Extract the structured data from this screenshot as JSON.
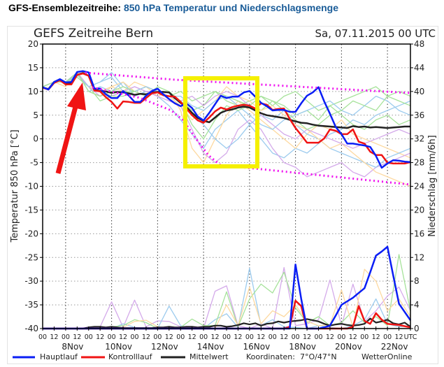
{
  "header": {
    "prefix": "GFS-Ensemblezeitreihe:",
    "title": "850 hPa Temperatur und Niederschlagsmenge"
  },
  "chart_data": {
    "type": "line",
    "title": "GEFS Zeitreihe Bern",
    "date": "Sa, 07.11.2015 00 UTC",
    "ylabel_left": "Temperatur 850 hPa [°C]",
    "ylabel_right": "Niederschlag [mm/6h]",
    "ylim_left": [
      -40,
      20
    ],
    "ylim_right": [
      0,
      48
    ],
    "left_ticks": [
      "20",
      "15",
      "10",
      "5",
      "0",
      "-5",
      "-10",
      "-15",
      "-20",
      "-25",
      "-30",
      "-35",
      "-40"
    ],
    "right_ticks": [
      "48",
      "44",
      "40",
      "36",
      "32",
      "28",
      "24",
      "20",
      "16",
      "12",
      "8",
      "4",
      "0"
    ],
    "x_tick_labels": [
      "00",
      "12",
      "00",
      "12",
      "00",
      "12",
      "00",
      "12",
      "00",
      "12",
      "00",
      "12",
      "00",
      "12",
      "00",
      "12",
      "00",
      "12",
      "00",
      "12",
      "00",
      "12",
      "00",
      "12",
      "00",
      "12",
      "00",
      "12",
      "00",
      "12",
      "00",
      "12",
      "UTC"
    ],
    "date_labels": [
      "8Nov",
      "10Nov",
      "12Nov",
      "14Nov",
      "16Nov",
      "18Nov",
      "20Nov",
      "22Nov"
    ],
    "grid": true,
    "colors": {
      "hauptlauf": "#0a1ef5",
      "kontrolllauf": "#f01414",
      "mittelwert": "#222222",
      "annotation_box": "#f5f000",
      "annotation_arrow": "#f01414",
      "envelope": "#f014f0"
    },
    "temperature": {
      "hauptlauf": [
        10.9,
        10.4,
        12,
        12.6,
        11.9,
        12,
        14.1,
        14.3,
        14,
        10.6,
        10.6,
        9.4,
        8.6,
        8.6,
        10.1,
        9.1,
        7.8,
        7.8,
        9.1,
        10.1,
        10.6,
        9.4,
        8.4,
        7.5,
        6.9,
        7.5,
        6.5,
        4.7,
        3.9,
        5.5,
        7.3,
        9.1,
        8.6,
        8.9,
        8.9,
        9.8,
        10.1,
        8.9,
        7.6,
        6.9,
        6,
        6.1,
        6.1,
        5.7,
        5.7,
        7.5,
        9.1,
        9.8,
        10.9,
        7.9,
        5.3,
        2.5,
        1,
        -1,
        -1,
        -1.2,
        -1.4,
        -1.7,
        -3.6,
        -6.1,
        -5.2,
        -4.5,
        -4.6,
        -4.8,
        -4.9
      ],
      "kontrolllauf": [
        10.8,
        10.4,
        11.8,
        12.4,
        11.5,
        11.5,
        13.5,
        13.8,
        13.3,
        10.2,
        10,
        8.8,
        7.8,
        6.4,
        7.9,
        7.8,
        7.6,
        7.6,
        8.6,
        9.6,
        9.8,
        9.2,
        9,
        8.9,
        7.8,
        6.4,
        5,
        3.9,
        3.4,
        4.5,
        5.8,
        6.6,
        6.2,
        6.7,
        7,
        7.2,
        7,
        6.4,
        7.5,
        7.2,
        6.1,
        6.3,
        6.4,
        4.2,
        2.3,
        0.8,
        -0.8,
        -0.8,
        -0.8,
        0.1,
        2,
        1.7,
        1,
        1,
        2,
        -0.6,
        -1,
        -2.7,
        -3.4,
        -3.4,
        -5,
        -5.2,
        -5.2,
        -5.2,
        -4.9
      ],
      "mittelwert": [
        10.8,
        10.5,
        12,
        12.5,
        11.6,
        11.7,
        13.5,
        13.9,
        13.3,
        10.4,
        10.1,
        10,
        9.7,
        9.9,
        9.8,
        9.6,
        9.3,
        9.5,
        9.4,
        9.8,
        9.9,
        9.9,
        9.8,
        8.6,
        7.6,
        6.7,
        5.5,
        4.4,
        3.8,
        3.5,
        4.5,
        5.5,
        6,
        6.2,
        6.6,
        6.8,
        6.6,
        6,
        5.4,
        5,
        4.8,
        4.6,
        4.4,
        4,
        3.7,
        3.4,
        3.3,
        3,
        2.8,
        2.7,
        2.6,
        2.5,
        2.4,
        2.3,
        2.7,
        2.5,
        2.6,
        2.4,
        2.5,
        2.4,
        2.3,
        2.4,
        2.5,
        2.6,
        2.6
      ],
      "members": [
        {
          "color": "#9ccbee",
          "values": [
            11,
            12,
            12,
            14,
            11,
            12,
            13,
            10,
            9,
            10,
            9,
            7,
            4,
            1,
            -2,
            2,
            4,
            6,
            3,
            0,
            -3,
            -4,
            -2,
            -3,
            -1,
            1,
            2,
            4,
            3,
            5,
            6,
            7,
            8
          ]
        },
        {
          "color": "#a6e29a",
          "values": [
            11,
            12,
            12,
            13.5,
            11,
            8,
            9,
            10,
            10,
            11,
            10,
            9,
            10,
            8,
            9,
            10,
            8,
            7,
            8,
            9,
            7,
            9,
            10,
            8,
            6,
            7,
            8,
            9,
            10,
            11,
            9,
            10,
            9
          ]
        },
        {
          "color": "#fdd9a0",
          "values": [
            11,
            12,
            11,
            14,
            10,
            9,
            11,
            10,
            12,
            11,
            9,
            10,
            6,
            -2,
            -5,
            0,
            5,
            8,
            6,
            4,
            2,
            0,
            -2,
            1,
            3,
            2,
            4,
            1,
            0,
            -1,
            -2,
            -3,
            -4
          ]
        },
        {
          "color": "#d4aaea",
          "values": [
            11,
            12,
            12,
            14,
            11,
            10,
            9,
            10,
            11,
            10,
            9,
            8,
            7,
            2,
            -3,
            -5,
            -3,
            2,
            4,
            2,
            -2,
            -5,
            -6,
            -8,
            -7,
            -6,
            -5,
            -7,
            -8,
            -6,
            -5,
            -4,
            -3
          ]
        },
        {
          "color": "#9ccbee",
          "values": [
            11,
            12,
            12,
            14,
            10,
            11,
            10,
            12,
            9,
            10,
            10,
            9,
            8,
            5,
            3,
            0,
            -2,
            0,
            3,
            5,
            4,
            6,
            3,
            1,
            0,
            -2,
            -3,
            -4,
            -5,
            -6,
            -4,
            -3,
            -2
          ]
        },
        {
          "color": "#a6e29a",
          "values": [
            11,
            12,
            12,
            13,
            11,
            10,
            9,
            9,
            10,
            11,
            10,
            9,
            8,
            6,
            7,
            10,
            9,
            8,
            7,
            6,
            8,
            7,
            5,
            6,
            4,
            7,
            5,
            3,
            2,
            4,
            5,
            3,
            4
          ]
        },
        {
          "color": "#fdd9a0",
          "values": [
            11,
            12,
            12,
            14,
            11,
            10,
            11,
            12,
            10,
            11,
            10,
            9,
            7,
            4,
            6,
            8,
            11,
            9,
            8,
            6,
            7,
            5,
            3,
            2,
            0,
            -2,
            -1,
            -3,
            -5,
            -7,
            -8,
            -9,
            -10
          ]
        },
        {
          "color": "#d4aaea",
          "values": [
            11,
            12,
            12,
            14,
            11,
            9,
            10,
            10,
            11,
            10,
            10,
            9,
            8,
            9,
            7,
            9,
            10,
            9,
            7,
            5,
            3,
            1,
            0,
            2,
            1,
            0,
            -1,
            -2,
            -1,
            0,
            1,
            2,
            1
          ]
        },
        {
          "color": "#9ccbee",
          "values": [
            11,
            12,
            12,
            13.5,
            11,
            12,
            14,
            11,
            10,
            11,
            10,
            9,
            9,
            7,
            6,
            8,
            9,
            7,
            5,
            3,
            2,
            4,
            5,
            6,
            7,
            8,
            6,
            5,
            7,
            9,
            8,
            6,
            5
          ]
        },
        {
          "color": "#a6e29a",
          "values": [
            11,
            12,
            12,
            14,
            10,
            9,
            10,
            11,
            10,
            9,
            11,
            10,
            8,
            3,
            0,
            4,
            7,
            6,
            7,
            9,
            8,
            6,
            4,
            2,
            3,
            5,
            6,
            8,
            7,
            6,
            9,
            8,
            7
          ]
        }
      ]
    },
    "precipitation": {
      "hauptlauf": [
        0,
        0,
        0,
        0,
        0,
        0,
        0,
        0,
        0,
        0,
        0,
        0,
        0,
        0,
        0,
        0,
        0,
        0,
        0,
        0,
        0,
        0,
        0,
        0,
        0,
        0,
        0,
        0,
        0,
        0,
        0,
        0,
        0,
        0,
        0,
        0,
        0,
        0,
        0,
        0,
        0,
        0,
        0,
        0,
        10.8,
        5,
        0,
        0,
        0,
        0.2,
        0.5,
        2.2,
        4,
        4.6,
        5.2,
        6,
        6.8,
        9.5,
        12.3,
        13,
        13.8,
        9,
        4.2,
        2.8,
        1.4
      ],
      "kontrolllauf": [
        0,
        0,
        0,
        0,
        0,
        0,
        0,
        0,
        0,
        0,
        0,
        0,
        0,
        0,
        0,
        0,
        0,
        0,
        0,
        0,
        0,
        0,
        0,
        0,
        0,
        0,
        0,
        0,
        0,
        0,
        0,
        0,
        0,
        0,
        0,
        0,
        0,
        0,
        0,
        0,
        0,
        0,
        0,
        0.3,
        4.7,
        3.8,
        0,
        0,
        0,
        0,
        0,
        0,
        0,
        0,
        0.3,
        3.8,
        1.3,
        0.8,
        2.6,
        1.5,
        0.8,
        0.7,
        0.6,
        0.4,
        0.2
      ],
      "mittelwert": [
        0,
        0,
        0,
        0,
        0,
        0,
        0,
        0,
        0.2,
        0.3,
        0.3,
        0.2,
        0.3,
        0.2,
        0.1,
        0.1,
        0.1,
        0.1,
        0.1,
        0.1,
        0.2,
        0.2,
        0.3,
        0.2,
        0.2,
        0.3,
        0.3,
        0.2,
        0.3,
        0.3,
        0.5,
        0.5,
        0.3,
        0.4,
        0.6,
        0.9,
        0.7,
        0.9,
        0.5,
        0.8,
        0.9,
        1.2,
        1,
        1.2,
        1.3,
        1.4,
        1.6,
        1.4,
        1.2,
        0.8,
        0.5,
        0.7,
        0.8,
        0.6,
        0.5,
        0.6,
        0.8,
        1.7,
        1,
        1.2,
        1.5,
        0.9,
        0.7,
        1,
        0.3
      ],
      "members": [
        {
          "color": "#d4aaea",
          "values": [
            0,
            0,
            0,
            0,
            0.2,
            0.3,
            4.5,
            0.2,
            4.8,
            0.3,
            1.3,
            1.2,
            0.3,
            0,
            0,
            6.3,
            7.2,
            0.5,
            0,
            0.8,
            0,
            10.3,
            0.5,
            0.8,
            1.5,
            8.2,
            0.5,
            7.5,
            1.2,
            3,
            5.5,
            7,
            3
          ]
        },
        {
          "color": "#9ccbee",
          "values": [
            0,
            0,
            0,
            0,
            0,
            0,
            0,
            0.8,
            0.2,
            0,
            0,
            3.8,
            0.5,
            0,
            0,
            1.5,
            2.5,
            0.2,
            10.2,
            0.5,
            1.5,
            0.3,
            0.2,
            0,
            0.5,
            0.2,
            0,
            0.5,
            1.5,
            5,
            0.8,
            0.3,
            0.5
          ]
        },
        {
          "color": "#a6e29a",
          "values": [
            0,
            0,
            0,
            0,
            0,
            0,
            0.3,
            0.5,
            1.5,
            1,
            0,
            0,
            0.2,
            1.6,
            0.5,
            0.5,
            6.2,
            0.3,
            5,
            7.5,
            6,
            9.5,
            3.5,
            1,
            2,
            0.5,
            1,
            3,
            1,
            2,
            0.5,
            12.5,
            3
          ]
        },
        {
          "color": "#fdd9a0",
          "values": [
            0,
            0,
            0,
            0,
            0,
            0,
            0,
            0.2,
            1.2,
            1.4,
            0.3,
            0,
            0.1,
            0,
            0,
            0,
            4,
            0.5,
            7,
            0.8,
            3,
            2,
            4,
            1.2,
            0.5,
            0.6,
            6.5,
            0.3,
            10,
            8,
            3,
            5,
            2
          ]
        }
      ]
    },
    "legend": [
      {
        "label": "Hauptlauf",
        "color": "#0a1ef5"
      },
      {
        "label": "Kontrolllauf",
        "color": "#f01414"
      },
      {
        "label": "Mittelwert",
        "color": "#222222"
      }
    ],
    "coordinates": "Koordinaten:  7°O/47°N",
    "credit": "WetterOnline"
  }
}
